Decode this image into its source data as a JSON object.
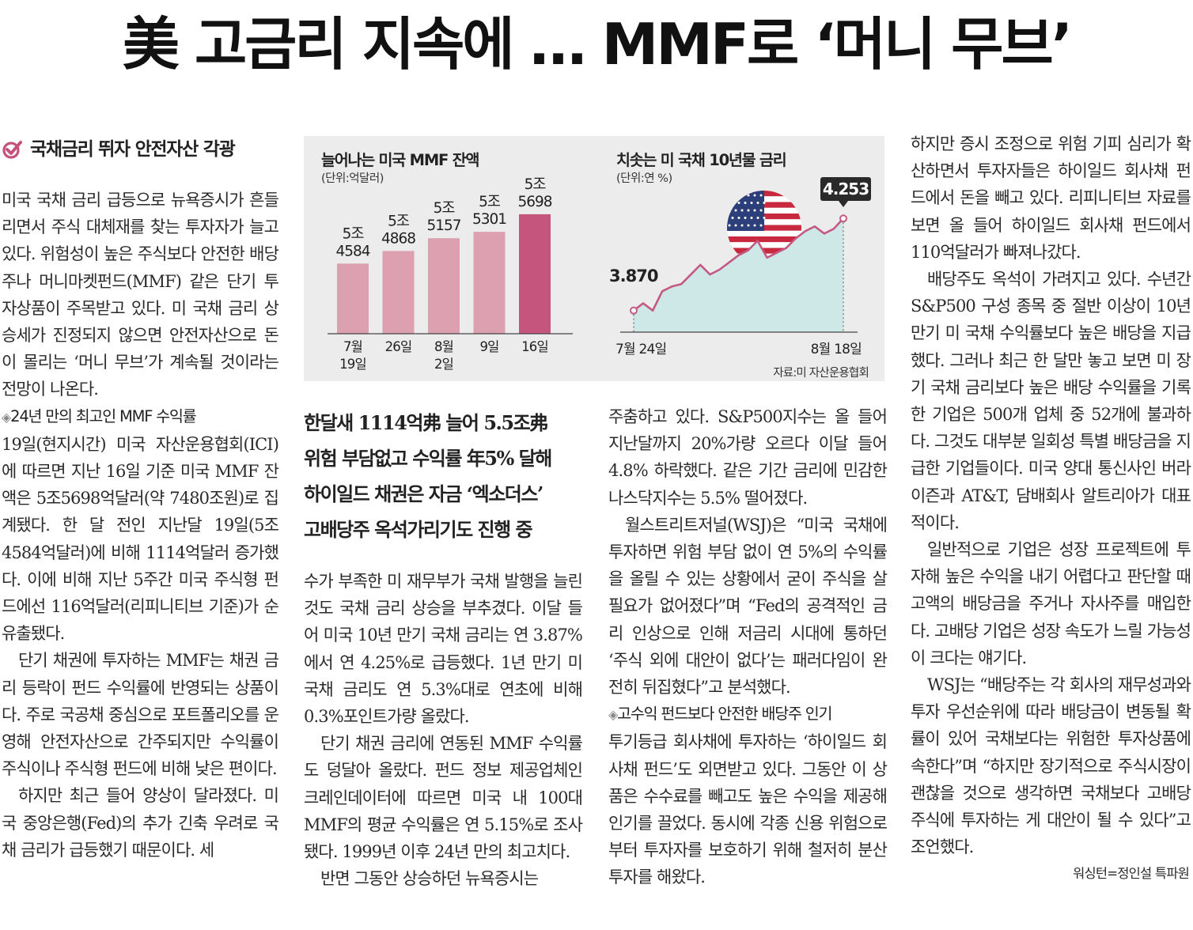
{
  "headline": "美 고금리 지속에 … MMF로 ‘머니 무브’",
  "side_head": "국채금리 뛰자 안전자산 각광",
  "subheads": [
    "한달새 1114억弗 늘어 5.5조弗",
    "위험 부담없고 수익률 年5% 달해",
    "하이일드 채권은 자금 ‘엑소더스’",
    "고배당주 옥석가리기도 진행 중"
  ],
  "col1": [
    {
      "type": "p",
      "text": "미국 국채 금리 급등으로 뉴욕증시가 흔들리면서 주식 대체재를 찾는 투자자가 늘고 있다. 위험성이 높은 주식보다 안전한 배당주나 머니마켓펀드(MMF) 같은 단기 투자상품이 주목받고 있다. 미 국채 금리 상승세가 진정되지 않으면 안전자산으로 돈이 몰리는 ‘머니 무브’가 계속될 것이라는 전망이 나온다."
    },
    {
      "type": "sub",
      "text": "24년 만의 최고인 MMF 수익률"
    },
    {
      "type": "p",
      "text": "19일(현지시간) 미국 자산운용협회(ICI)에 따르면 지난 16일 기준 미국 MMF 잔액은 5조5698억달러(약 7480조원)로 집계됐다. 한 달 전인 지난달 19일(5조4584억달러)에 비해 1114억달러 증가했다. 이에 비해 지난 5주간 미국 주식형 펀드에선 116억달러(리피니티브 기준)가 순유출됐다."
    },
    {
      "type": "ind",
      "text": "단기 채권에 투자하는 MMF는 채권 금리 등락이 펀드 수익률에 반영되는 상품이다. 주로 국공채 중심으로 포트폴리오를 운영해 안전자산으로 간주되지만 수익률이 주식이나 주식형 펀드에 비해 낮은 편이다."
    },
    {
      "type": "ind",
      "text": "하지만 최근 들어 양상이 달라졌다. 미국 중앙은행(Fed)의 추가 긴축 우려로 국채 금리가 급등했기 때문이다. 세"
    }
  ],
  "col2": [
    {
      "type": "p",
      "text": "수가 부족한 미 재무부가 국채 발행을 늘린 것도 국채 금리 상승을 부추겼다. 이달 들어 미국 10년 만기 국채 금리는 연 3.87%에서 연 4.25%로 급등했다. 1년 만기 미 국채 금리도 연 5.3%대로 연초에 비해 0.3%포인트가량 올랐다."
    },
    {
      "type": "ind",
      "text": "단기 채권 금리에 연동된 MMF 수익률도 덩달아 올랐다. 펀드 정보 제공업체인 크레인데이터에 따르면 미국 내 100대 MMF의 평균 수익률은 연 5.15%로 조사됐다. 1999년 이후 24년 만의 최고치다."
    },
    {
      "type": "ind",
      "text": "반면 그동안 상승하던 뉴욕증시는"
    }
  ],
  "col3": [
    {
      "type": "p",
      "text": "주춤하고 있다. S&P500지수는 올 들어 지난달까지 20%가량 오르다 이달 들어 4.8% 하락했다. 같은 기간 금리에 민감한 나스닥지수는 5.5% 떨어졌다."
    },
    {
      "type": "ind",
      "text": "월스트리트저널(WSJ)은 “미국 국채에 투자하면 위험 부담 없이 연 5%의 수익률을 올릴 수 있는 상황에서 굳이 주식을 살 필요가 없어졌다”며 “Fed의 공격적인 금리 인상으로 인해 저금리 시대에 통하던 ‘주식 외에 대안이 없다’는 패러다임이 완전히 뒤집혔다”고 분석했다."
    },
    {
      "type": "sub",
      "text": "고수익 펀드보다 안전한 배당주 인기"
    },
    {
      "type": "p",
      "text": "투기등급 회사채에 투자하는 ‘하이일드 회사채 펀드’도 외면받고 있다. 그동안 이 상품은 수수료를 빼고도 높은 수익을 제공해 인기를 끌었다. 동시에 각종 신용 위험으로부터 투자자를 보호하기 위해 철저히 분산투자를 해왔다."
    }
  ],
  "col4": [
    {
      "type": "p",
      "text": "하지만 증시 조정으로 위험 기피 심리가 확산하면서 투자자들은 하이일드 회사채 펀드에서 돈을 빼고 있다. 리피니티브 자료를 보면 올 들어 하이일드 회사채 펀드에서 110억달러가 빠져나갔다."
    },
    {
      "type": "ind",
      "text": "배당주도 옥석이 가려지고 있다. 수년간 S&P500 구성 종목 중 절반 이상이 10년 만기 미 국채 수익률보다 높은 배당을 지급했다. 그러나 최근 한 달만 놓고 보면 미 장기 국채 금리보다 높은 배당 수익률을 기록한 기업은 500개 업체 중 52개에 불과하다. 그것도 대부분 일회성 특별 배당금을 지급한 기업들이다. 미국 양대 통신사인 버라이즌과 AT&T, 담배회사 알트리아가 대표적이다."
    },
    {
      "type": "ind",
      "text": "일반적으로 기업은 성장 프로젝트에 투자해 높은 수익을 내기 어렵다고 판단할 때 고액의 배당금을 주거나 자사주를 매입한다. 고배당 기업은 성장 속도가 느릴 가능성이 크다는 얘기다."
    },
    {
      "type": "ind",
      "text": "WSJ는 “배당주는 각 회사의 재무성과와 투자 우선순위에 따라 배당금이 변동될 확률이 있어 국채보다는 위험한 투자상품에 속한다”며 “하지만 장기적으로 주식시장이 괜찮을 것으로 생각하면 국채보다 고배당 주식에 투자하는 게 대안이 될 수 있다”고 조언했다."
    }
  ],
  "byline": "워싱턴=정인설 특파원",
  "graphic": {
    "source": "자료:미 자산운용협회"
  },
  "chart_data": [
    {
      "type": "bar",
      "title": "늘어나는 미국 MMF 잔액",
      "unit": "(단위:억달러)",
      "categories": [
        "7월 19일",
        "26일",
        "8월 2일",
        "9일",
        "16일"
      ],
      "category_lines": [
        [
          "7월",
          "19일"
        ],
        [
          "26일"
        ],
        [
          "8월",
          "2일"
        ],
        [
          "9일"
        ],
        [
          "16일"
        ]
      ],
      "values": [
        54584,
        54868,
        55157,
        55301,
        55698
      ],
      "value_labels": [
        [
          "5조",
          "4584"
        ],
        [
          "5조",
          "4868"
        ],
        [
          "5조",
          "5157"
        ],
        [
          "5조",
          "5301"
        ],
        [
          "5조",
          "5698"
        ]
      ],
      "colors": [
        "#dca0b1",
        "#dca0b1",
        "#dca0b1",
        "#dca0b1",
        "#c5557c"
      ]
    },
    {
      "type": "area",
      "title": "치솟는 미 국채 10년물 금리",
      "unit": "(단위:연 %)",
      "x_labels": [
        "7월 24일",
        "8월 18일"
      ],
      "start_label": "3.870",
      "end_label": "4.253",
      "values": [
        3.87,
        3.9,
        3.87,
        3.95,
        3.97,
        3.98,
        4.02,
        4.06,
        4.02,
        4.04,
        4.07,
        4.1,
        4.12,
        4.16,
        4.09,
        4.11,
        4.13,
        4.17,
        4.2,
        4.22,
        4.19,
        4.21,
        4.253
      ],
      "fill": "#cde8e6",
      "line": "#c45a83"
    }
  ]
}
